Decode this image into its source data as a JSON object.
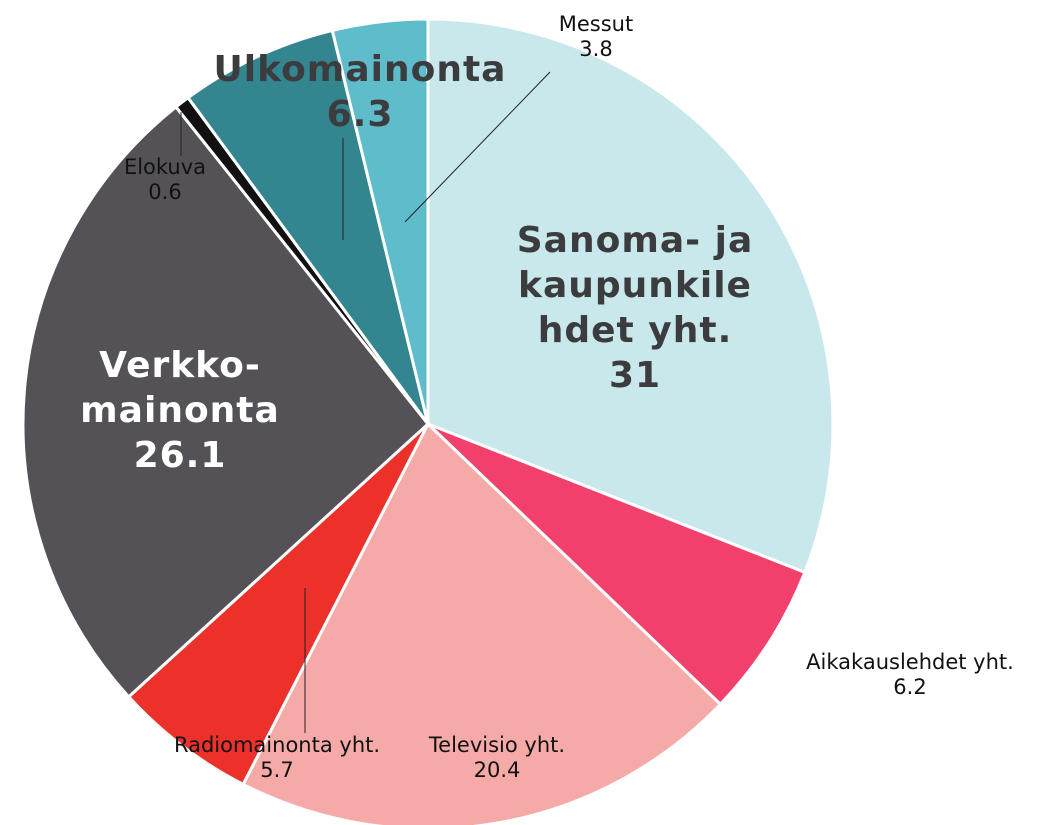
{
  "chart_data": {
    "type": "pie",
    "categories": [
      "Sanoma- ja kaupunkilehdet yht.",
      "Aikakauslehdet yht.",
      "Televisio yht.",
      "Radiomainonta yht.",
      "Verkko-mainonta",
      "Elokuva",
      "Ulkomainonta",
      "Messut"
    ],
    "values": [
      31,
      6.2,
      20.4,
      5.7,
      26.1,
      0.6,
      6.3,
      3.8
    ],
    "colors": [
      "#c8e8ec",
      "#f2406c",
      "#f5aaa8",
      "#ec302a",
      "#545257",
      "#111111",
      "#338590",
      "#5fbccb"
    ]
  }
}
